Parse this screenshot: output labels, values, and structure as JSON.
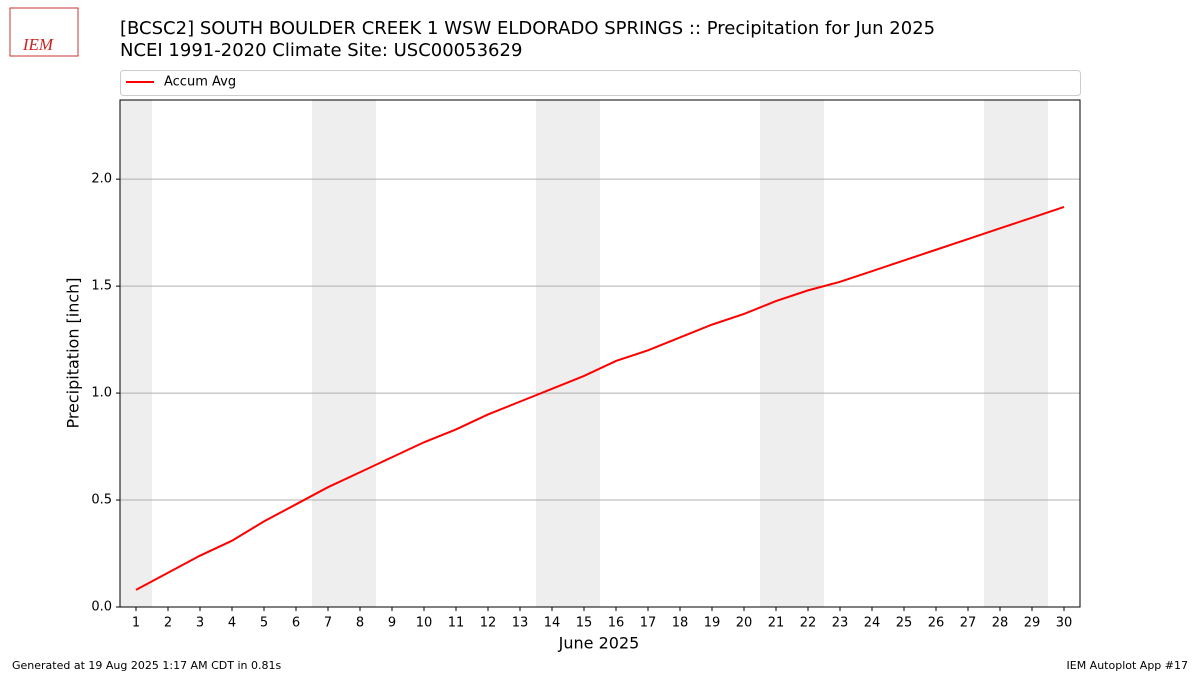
{
  "chart_data": {
    "type": "line",
    "title": "[BCSC2] SOUTH BOULDER CREEK 1 WSW ELDORADO SPRINGS :: Precipitation for Jun 2025",
    "subtitle": "NCEI 1991-2020 Climate Site: USC00053629",
    "logo_text": "IEM",
    "xlabel": "June 2025",
    "ylabel": "Precipitation [inch]",
    "x": [
      1,
      2,
      3,
      4,
      5,
      6,
      7,
      8,
      9,
      10,
      11,
      12,
      13,
      14,
      15,
      16,
      17,
      18,
      19,
      20,
      21,
      22,
      23,
      24,
      25,
      26,
      27,
      28,
      29,
      30
    ],
    "series": [
      {
        "name": "Accum Avg",
        "color": "#ff0000",
        "values": [
          0.08,
          0.16,
          0.24,
          0.31,
          0.4,
          0.48,
          0.56,
          0.63,
          0.7,
          0.77,
          0.83,
          0.9,
          0.96,
          1.02,
          1.08,
          1.15,
          1.2,
          1.26,
          1.32,
          1.37,
          1.43,
          1.48,
          1.52,
          1.57,
          1.62,
          1.67,
          1.72,
          1.77,
          1.82,
          1.87
        ]
      }
    ],
    "xlim": [
      0.5,
      30.5
    ],
    "xticks": [
      1,
      2,
      3,
      4,
      5,
      6,
      7,
      8,
      9,
      10,
      11,
      12,
      13,
      14,
      15,
      16,
      17,
      18,
      19,
      20,
      21,
      22,
      23,
      24,
      25,
      26,
      27,
      28,
      29,
      30
    ],
    "ylim": [
      0,
      2.37
    ],
    "yticks": [
      {
        "value": 0,
        "label": "0.0"
      },
      0.5,
      {
        "value": 1,
        "label": "1.0"
      },
      1.5,
      {
        "value": 2,
        "label": "2.0"
      }
    ],
    "grid": true,
    "shade_spans": [
      [
        0.5,
        1.5
      ],
      [
        6.5,
        8.5
      ],
      [
        13.5,
        15.5
      ],
      [
        20.5,
        22.5
      ],
      [
        27.5,
        29.5
      ]
    ],
    "shade_color": "#eeeeee",
    "footer_left": "Generated at 19 Aug 2025 1:17 AM CDT in 0.81s",
    "footer_right": "IEM Autoplot App #17"
  }
}
